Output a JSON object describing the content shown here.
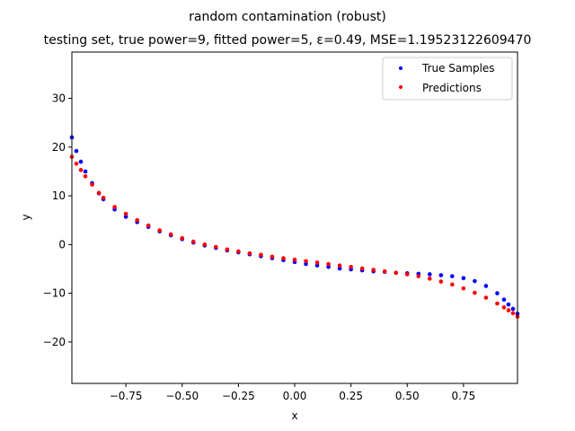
{
  "chart_data": {
    "type": "scatter",
    "title": "random contamination (robust)",
    "subtitle": "testing set, true power=9, fitted power=5, ε=0.49, MSE=1.19523122609470",
    "xlabel": "x",
    "ylabel": "y",
    "xlim": [
      -0.99,
      0.99
    ],
    "ylim": [
      -28.5,
      39.5
    ],
    "grid": false,
    "legend_position": "top-right",
    "x_ticks": [
      -0.75,
      -0.5,
      -0.25,
      0.0,
      0.25,
      0.5,
      0.75
    ],
    "x_tick_labels": [
      "−0.75",
      "−0.50",
      "−0.25",
      "0.00",
      "0.25",
      "0.50",
      "0.75"
    ],
    "y_ticks": [
      -20,
      -10,
      0,
      10,
      20,
      30
    ],
    "y_tick_labels": [
      "−20",
      "−10",
      "0",
      "10",
      "20",
      "30"
    ],
    "series": [
      {
        "name": "True Samples",
        "color": "#0000ff",
        "x": [
          -0.99,
          -0.97,
          -0.95,
          -0.93,
          -0.9,
          -0.87,
          -0.85,
          -0.8,
          -0.75,
          -0.7,
          -0.65,
          -0.6,
          -0.55,
          -0.5,
          -0.45,
          -0.4,
          -0.35,
          -0.3,
          -0.25,
          -0.2,
          -0.15,
          -0.1,
          -0.05,
          0.0,
          0.05,
          0.1,
          0.15,
          0.2,
          0.25,
          0.3,
          0.35,
          0.4,
          0.45,
          0.5,
          0.55,
          0.6,
          0.65,
          0.7,
          0.75,
          0.8,
          0.85,
          0.9,
          0.93,
          0.95,
          0.97,
          0.99
        ],
        "y": [
          22.0,
          19.2,
          17.0,
          15.0,
          12.6,
          10.5,
          9.3,
          7.2,
          5.7,
          4.6,
          3.6,
          2.7,
          1.9,
          1.1,
          0.4,
          -0.2,
          -0.7,
          -1.2,
          -1.6,
          -2.0,
          -2.4,
          -2.8,
          -3.2,
          -3.6,
          -4.0,
          -4.3,
          -4.6,
          -4.9,
          -5.1,
          -5.3,
          -5.5,
          -5.6,
          -5.8,
          -5.9,
          -6.0,
          -6.1,
          -6.3,
          -6.5,
          -6.9,
          -7.5,
          -8.5,
          -10.0,
          -11.3,
          -12.3,
          -13.2,
          -14.2
        ]
      },
      {
        "name": "Predictions",
        "color": "#ff0000",
        "x": [
          -0.99,
          -0.97,
          -0.95,
          -0.93,
          -0.9,
          -0.87,
          -0.85,
          -0.8,
          -0.75,
          -0.7,
          -0.65,
          -0.6,
          -0.55,
          -0.5,
          -0.45,
          -0.4,
          -0.35,
          -0.3,
          -0.25,
          -0.2,
          -0.15,
          -0.1,
          -0.05,
          0.0,
          0.05,
          0.1,
          0.15,
          0.2,
          0.25,
          0.3,
          0.35,
          0.4,
          0.45,
          0.5,
          0.55,
          0.6,
          0.65,
          0.7,
          0.75,
          0.8,
          0.85,
          0.9,
          0.93,
          0.95,
          0.97,
          0.99
        ],
        "y": [
          18.0,
          16.6,
          15.3,
          14.0,
          12.3,
          10.6,
          9.6,
          7.7,
          6.3,
          5.0,
          3.9,
          2.9,
          2.1,
          1.3,
          0.6,
          0.0,
          -0.5,
          -1.0,
          -1.4,
          -1.8,
          -2.1,
          -2.5,
          -2.8,
          -3.1,
          -3.4,
          -3.7,
          -4.0,
          -4.3,
          -4.6,
          -4.9,
          -5.2,
          -5.5,
          -5.8,
          -6.1,
          -6.5,
          -7.0,
          -7.6,
          -8.2,
          -9.0,
          -9.9,
          -10.9,
          -12.1,
          -12.9,
          -13.5,
          -14.1,
          -14.8
        ]
      }
    ]
  }
}
